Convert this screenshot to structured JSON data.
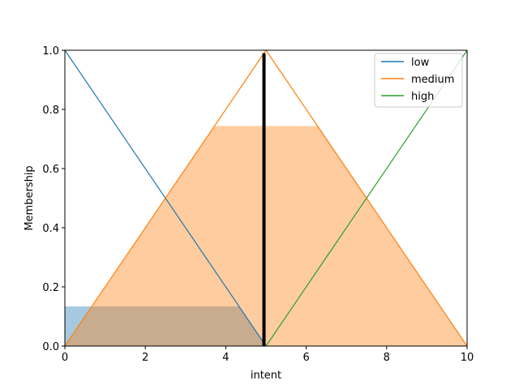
{
  "chart_data": {
    "type": "line",
    "xlabel": "intent",
    "ylabel": "Membership",
    "xlim": [
      0,
      10
    ],
    "ylim": [
      0,
      1
    ],
    "xticks": [
      "0",
      "2",
      "4",
      "6",
      "8",
      "10"
    ],
    "yticks": [
      "0.0",
      "0.2",
      "0.4",
      "0.6",
      "0.8",
      "1.0"
    ],
    "legend_position": "top-right",
    "series": [
      {
        "name": "low",
        "color": "#1f77b4",
        "x": [
          0,
          5
        ],
        "y": [
          1,
          0
        ]
      },
      {
        "name": "medium",
        "color": "#ff7f0e",
        "x": [
          0,
          5,
          10
        ],
        "y": [
          0,
          1,
          0
        ]
      },
      {
        "name": "high",
        "color": "#2ca02c",
        "x": [
          5,
          10
        ],
        "y": [
          0,
          1
        ]
      }
    ],
    "activation_fills": [
      {
        "series": "low",
        "color": "#1f77b4",
        "opacity": 0.4,
        "x": [
          0,
          4.33,
          5,
          5,
          0
        ],
        "y": [
          0.134,
          0.134,
          0,
          0,
          0
        ]
      },
      {
        "series": "medium",
        "color": "#ff7f0e",
        "opacity": 0.4,
        "x": [
          0,
          3.72,
          6.28,
          10,
          0
        ],
        "y": [
          0,
          0.744,
          0.744,
          0,
          0
        ]
      }
    ],
    "crisp_output": {
      "x": 4.95,
      "y_top": 0.99,
      "color": "#000000"
    }
  }
}
